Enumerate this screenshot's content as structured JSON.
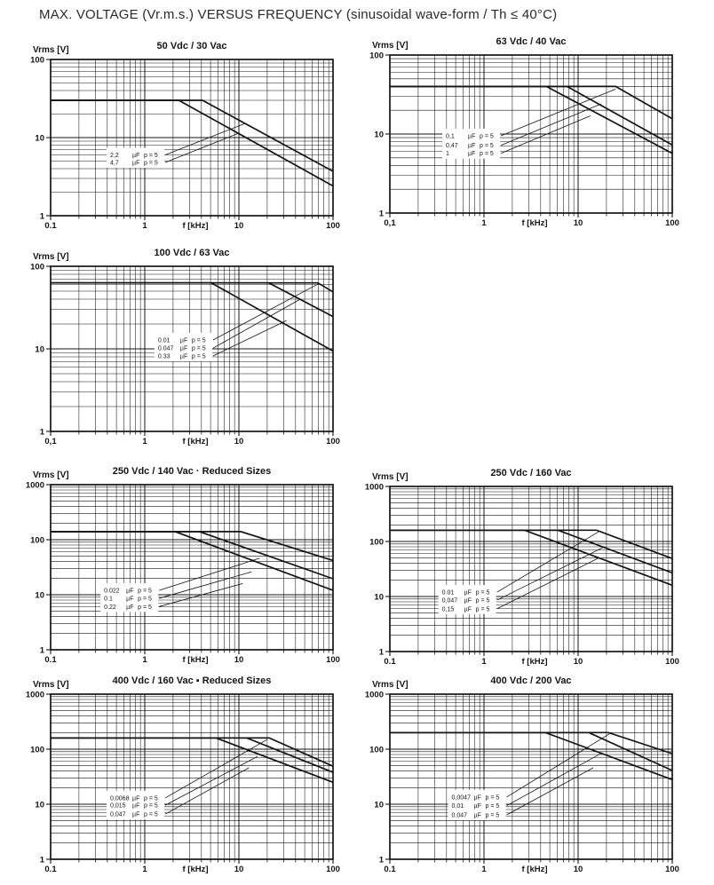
{
  "page": {
    "title": "MAX. VOLTAGE (Vr.m.s.) VERSUS FREQUENCY (sinusoidal wave-form / Th ≤ 40°C)"
  },
  "chart_data": [
    {
      "type": "line",
      "title": "50 Vdc / 30 Vac",
      "xlabel": "f [kHz]",
      "ylabel": "Vrms [V]",
      "xlim": [
        0.1,
        100
      ],
      "ylim": [
        1,
        100
      ],
      "x_ticks": [
        "0.1",
        "1",
        "10",
        "100"
      ],
      "y_ticks": [
        "100",
        "10",
        "1"
      ],
      "grid": "log-log",
      "legend_position": "inside-left",
      "series": [
        {
          "label": "2,2 µF p = 5",
          "value": "2,2",
          "unit": "µF",
          "p": "p = 5",
          "points": [
            [
              0.1,
              30
            ],
            [
              4.1,
              30
            ],
            [
              100,
              3.7
            ]
          ],
          "label_anchor": [
            1.8,
            6.0
          ],
          "pointer_to": [
            11.7,
            15.2
          ]
        },
        {
          "label": "4,7 µF p = 5",
          "value": "4,7",
          "unit": "µF",
          "p": "p = 5",
          "points": [
            [
              0.1,
              30
            ],
            [
              2.3,
              30
            ],
            [
              100,
              2.4
            ]
          ],
          "label_anchor": [
            1.8,
            4.8
          ],
          "pointer_to": [
            10.0,
            11.4
          ]
        }
      ]
    },
    {
      "type": "line",
      "title": "63 Vdc / 40 Vac",
      "xlabel": "f [kHz]",
      "ylabel": "Vrms [V]",
      "xlim": [
        0.1,
        100
      ],
      "ylim": [
        1,
        100
      ],
      "x_ticks": [
        "0,1",
        "1",
        "10",
        "100"
      ],
      "y_ticks": [
        "100",
        "10",
        "1"
      ],
      "grid": "log-log",
      "legend_position": "inside-left",
      "series": [
        {
          "label": "0,1 µF p = 5",
          "value": "0,1",
          "unit": "µF",
          "p": "p = 5",
          "points": [
            [
              0.1,
              40
            ],
            [
              25,
              40
            ],
            [
              100,
              15.6
            ]
          ],
          "label_anchor": [
            1.65,
            9.5
          ],
          "pointer_to": [
            25,
            37
          ]
        },
        {
          "label": "0,47 µF p = 5",
          "value": "0,47",
          "unit": "µF",
          "p": "p = 5",
          "points": [
            [
              0.1,
              40
            ],
            [
              7.6,
              40
            ],
            [
              100,
              7.3
            ]
          ],
          "label_anchor": [
            1.65,
            7.2
          ],
          "pointer_to": [
            17.5,
            24
          ]
        },
        {
          "label": "1 µF p = 5",
          "value": "1",
          "unit": "µF",
          "p": "p = 5",
          "points": [
            [
              0.1,
              40
            ],
            [
              4.6,
              40
            ],
            [
              100,
              5.7
            ]
          ],
          "label_anchor": [
            1.65,
            5.7
          ],
          "pointer_to": [
            13.5,
            17
          ]
        }
      ]
    },
    {
      "type": "line",
      "title": "100 Vdc / 63 Vac",
      "xlabel": "f [kHz]",
      "ylabel": "Vrms [V]",
      "xlim": [
        0.1,
        100
      ],
      "ylim": [
        1,
        100
      ],
      "x_ticks": [
        "0,1",
        "1",
        "10",
        "100"
      ],
      "y_ticks": [
        "100",
        "10",
        "1"
      ],
      "grid": "log-log",
      "legend_position": "inside-middle",
      "series": [
        {
          "label": "0.01 µF p = 5",
          "value": "0.01",
          "unit": "µF",
          "p": "p = 5",
          "points": [
            [
              0.1,
              63
            ],
            [
              69,
              63
            ],
            [
              100,
              49
            ]
          ],
          "label_anchor": [
            5.8,
            12.8
          ],
          "pointer_to": [
            71,
            62
          ]
        },
        {
          "label": "0.047 µF p = 5",
          "value": "0.047",
          "unit": "µF",
          "p": "p = 5",
          "points": [
            [
              0.1,
              63
            ],
            [
              20.8,
              63
            ],
            [
              100,
              24.6
            ]
          ],
          "label_anchor": [
            5.8,
            10.2
          ],
          "pointer_to": [
            45,
            40
          ]
        },
        {
          "label": "0.33 µF p = 5",
          "value": "0.33",
          "unit": "µF",
          "p": "p = 5",
          "points": [
            [
              0.1,
              63
            ],
            [
              5.1,
              63
            ],
            [
              100,
              9.4
            ]
          ],
          "label_anchor": [
            5.8,
            8.2
          ],
          "pointer_to": [
            32,
            22
          ]
        }
      ]
    },
    {
      "type": "line",
      "title": "250 Vdc / 140 Vac · Reduced Sizes",
      "xlabel": "f [kHz]",
      "ylabel": "Vrms [V]",
      "xlim": [
        0.1,
        100
      ],
      "ylim": [
        1,
        1000
      ],
      "x_ticks": [
        "0.1",
        "1",
        "10",
        "100"
      ],
      "y_ticks": [
        "1000",
        "100",
        "10",
        "1"
      ],
      "grid": "log-log",
      "legend_position": "inside-left",
      "series": [
        {
          "label": "0.022 µF p = 5",
          "value": "0.022",
          "unit": "µF",
          "p": "p = 5",
          "points": [
            [
              0.1,
              140
            ],
            [
              10.5,
              140
            ],
            [
              100,
              42
            ]
          ],
          "label_anchor": [
            1.55,
            12.0
          ],
          "pointer_to": [
            16.6,
            46
          ]
        },
        {
          "label": "0.1 µF p = 5",
          "value": "0.1",
          "unit": "µF",
          "p": "p = 5",
          "points": [
            [
              0.1,
              140
            ],
            [
              3.8,
              140
            ],
            [
              100,
              19.5
            ]
          ],
          "label_anchor": [
            1.55,
            8.6
          ],
          "pointer_to": [
            13.6,
            26
          ]
        },
        {
          "label": "0.22 µF p = 5",
          "value": "0.22",
          "unit": "µF",
          "p": "p = 5",
          "points": [
            [
              0.1,
              140
            ],
            [
              2.1,
              140
            ],
            [
              100,
              12
            ]
          ],
          "label_anchor": [
            1.55,
            6.1
          ],
          "pointer_to": [
            11,
            16
          ]
        }
      ]
    },
    {
      "type": "line",
      "title": "250 Vdc / 160 Vac",
      "xlabel": "f [kHz]",
      "ylabel": "Vrms [V]",
      "xlim": [
        0.1,
        100
      ],
      "ylim": [
        1,
        1000
      ],
      "x_ticks": [
        "0.1",
        "1",
        "10",
        "100"
      ],
      "y_ticks": [
        "1000",
        "100",
        "10",
        "1"
      ],
      "grid": "log-log",
      "legend_position": "inside-left",
      "series": [
        {
          "label": "0.01 µF p = 5",
          "value": "0.01",
          "unit": "µF",
          "p": "p = 5",
          "points": [
            [
              0.1,
              160
            ],
            [
              15.7,
              160
            ],
            [
              100,
              49
            ]
          ],
          "label_anchor": [
            1.5,
            12.0
          ],
          "pointer_to": [
            16.5,
            150
          ]
        },
        {
          "label": "0,047 µF p = 5",
          "value": "0,047",
          "unit": "µF",
          "p": "p = 5",
          "points": [
            [
              0.1,
              160
            ],
            [
              6.1,
              160
            ],
            [
              100,
              27
            ]
          ],
          "label_anchor": [
            1.5,
            8.6
          ],
          "pointer_to": [
            19,
            80
          ]
        },
        {
          "label": "0,15 µF p = 5",
          "value": "0,15",
          "unit": "µF",
          "p": "p = 5",
          "points": [
            [
              0.1,
              160
            ],
            [
              2.7,
              160
            ],
            [
              100,
              16
            ]
          ],
          "label_anchor": [
            1.5,
            6.0
          ],
          "pointer_to": [
            16.5,
            50
          ]
        }
      ]
    },
    {
      "type": "line",
      "title": "400 Vdc / 160 Vac ▪ Reduced Sizes",
      "xlabel": "f [kHz]",
      "ylabel": "Vrms [V]",
      "xlim": [
        0.1,
        100
      ],
      "ylim": [
        1,
        1000
      ],
      "x_ticks": [
        "0.1",
        "1",
        "10",
        "100"
      ],
      "y_ticks": [
        "1000",
        "100",
        "10",
        "1"
      ],
      "grid": "log-log",
      "legend_position": "inside-left",
      "series": [
        {
          "label": "0,0068 µF p = 5",
          "value": "0,0068",
          "unit": "µF",
          "p": "p = 5",
          "points": [
            [
              0.1,
              160
            ],
            [
              21,
              160
            ],
            [
              100,
              49
            ]
          ],
          "label_anchor": [
            1.8,
            13.0
          ],
          "pointer_to": [
            20,
            150
          ]
        },
        {
          "label": "0,015 µF p = 5",
          "value": "0,015",
          "unit": "µF",
          "p": "p = 5",
          "points": [
            [
              0.1,
              160
            ],
            [
              12.1,
              160
            ],
            [
              100,
              38
            ]
          ],
          "label_anchor": [
            1.8,
            9.6
          ],
          "pointer_to": [
            15.8,
            74
          ]
        },
        {
          "label": "0,047 µF p = 5",
          "value": "0,047",
          "unit": "µF",
          "p": "p = 5",
          "points": [
            [
              0.1,
              160
            ],
            [
              5.7,
              160
            ],
            [
              100,
              25
            ]
          ],
          "label_anchor": [
            1.8,
            6.6
          ],
          "pointer_to": [
            12.8,
            46
          ]
        }
      ]
    },
    {
      "type": "line",
      "title": "400 Vdc / 200 Vac",
      "xlabel": "f [kHz]",
      "ylabel": "Vrms [V]",
      "xlim": [
        0.1,
        100
      ],
      "ylim": [
        1,
        1000
      ],
      "x_ticks": [
        "0.1",
        "1",
        "10",
        "100"
      ],
      "y_ticks": [
        "1000",
        "100",
        "10",
        "1"
      ],
      "grid": "log-log",
      "legend_position": "inside-left",
      "series": [
        {
          "label": "0,0047 µF p = 5",
          "value": "0,0047",
          "unit": "µF",
          "p": "p = 5",
          "points": [
            [
              0.1,
              200
            ],
            [
              21,
              200
            ],
            [
              100,
              83
            ]
          ],
          "label_anchor": [
            1.9,
            13.5
          ],
          "pointer_to": [
            21.5,
            190
          ]
        },
        {
          "label": "0.01 µF p = 5",
          "value": "0.01",
          "unit": "µF",
          "p": "p = 5",
          "points": [
            [
              0.1,
              200
            ],
            [
              13,
              200
            ],
            [
              100,
              41
            ]
          ],
          "label_anchor": [
            1.9,
            9.4
          ],
          "pointer_to": [
            18,
            86
          ]
        },
        {
          "label": "0.047 µF p = 5",
          "value": "0.047",
          "unit": "µF",
          "p": "p = 5",
          "points": [
            [
              0.1,
              200
            ],
            [
              4.5,
              200
            ],
            [
              100,
              28
            ]
          ],
          "label_anchor": [
            1.9,
            6.4
          ],
          "pointer_to": [
            14.5,
            46
          ]
        }
      ]
    }
  ]
}
